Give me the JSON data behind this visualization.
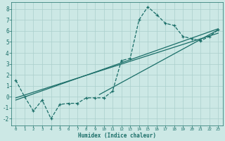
{
  "xlabel": "Humidex (Indice chaleur)",
  "bg_color": "#cce8e5",
  "grid_color": "#aacfcc",
  "line_color": "#1a6e68",
  "xlim": [
    -0.5,
    23.5
  ],
  "ylim": [
    -2.6,
    8.6
  ],
  "xticks": [
    0,
    1,
    2,
    3,
    4,
    5,
    6,
    7,
    8,
    9,
    10,
    11,
    12,
    13,
    14,
    15,
    16,
    17,
    18,
    19,
    20,
    21,
    22,
    23
  ],
  "yticks": [
    -2,
    -1,
    0,
    1,
    2,
    3,
    4,
    5,
    6,
    7,
    8
  ],
  "data_x": [
    0,
    1,
    2,
    3,
    4,
    5,
    6,
    7,
    8,
    9,
    10,
    11,
    12,
    13,
    14,
    15,
    16,
    17,
    18,
    19,
    20,
    21,
    22,
    23
  ],
  "data_y": [
    1.5,
    0.0,
    -1.3,
    -0.3,
    -2.0,
    -0.7,
    -0.6,
    -0.6,
    -0.1,
    -0.1,
    -0.1,
    0.5,
    3.3,
    3.5,
    7.0,
    8.2,
    7.5,
    6.7,
    6.5,
    5.5,
    5.3,
    5.1,
    5.5,
    6.1
  ],
  "line1_x": [
    0,
    23
  ],
  "line1_y": [
    -0.1,
    5.8
  ],
  "line2_x": [
    0,
    23
  ],
  "line2_y": [
    -0.3,
    6.2
  ],
  "line3_x": [
    9.5,
    23
  ],
  "line3_y": [
    0.2,
    6.1
  ]
}
